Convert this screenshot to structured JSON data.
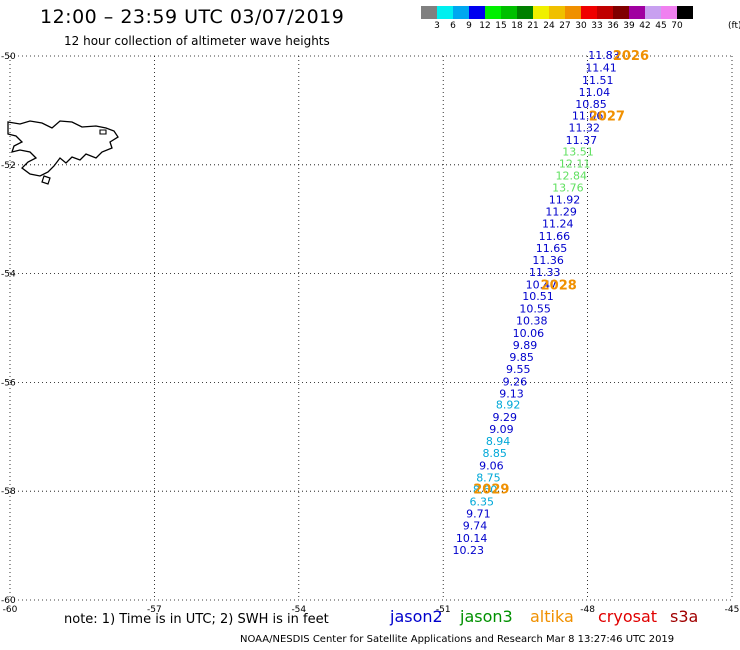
{
  "header": {
    "title": "12:00 – 23:59 UTC 03/07/2019",
    "subtitle": "12 hour collection of altimeter wave heights"
  },
  "colorbar": {
    "unit": "(ft)",
    "bins": [
      {
        "label": "3",
        "color": "#808080"
      },
      {
        "label": "6",
        "color": "#00f0f0"
      },
      {
        "label": "9",
        "color": "#00a8f0"
      },
      {
        "label": "12",
        "color": "#0000f0"
      },
      {
        "label": "15",
        "color": "#00f000"
      },
      {
        "label": "18",
        "color": "#00c000"
      },
      {
        "label": "21",
        "color": "#008000"
      },
      {
        "label": "24",
        "color": "#f0f000"
      },
      {
        "label": "27",
        "color": "#f0c000"
      },
      {
        "label": "30",
        "color": "#f09000"
      },
      {
        "label": "33",
        "color": "#f00000"
      },
      {
        "label": "36",
        "color": "#c00000"
      },
      {
        "label": "39",
        "color": "#800000"
      },
      {
        "label": "42",
        "color": "#a000a0"
      },
      {
        "label": "45",
        "color": "#c8a0f0"
      },
      {
        "label": "70",
        "color": "#f080f0"
      },
      {
        "label": "",
        "color": "#000000"
      }
    ]
  },
  "chart_data": {
    "type": "scatter",
    "xlim": [
      -60,
      -45
    ],
    "ylim": [
      -60,
      -50
    ],
    "x_ticks": [
      {
        "value": -60,
        "label": "-60"
      },
      {
        "value": -57,
        "label": "-57"
      },
      {
        "value": -54,
        "label": "-54"
      },
      {
        "value": -51,
        "label": "-51"
      },
      {
        "value": -48,
        "label": "-48"
      },
      {
        "value": -45,
        "label": "-45"
      }
    ],
    "y_ticks": [
      {
        "value": -50,
        "label": "-50"
      },
      {
        "value": -52,
        "label": "-52"
      },
      {
        "value": -54,
        "label": "-54"
      },
      {
        "value": -56,
        "label": "-56"
      },
      {
        "value": -58,
        "label": "-58"
      },
      {
        "value": -60,
        "label": "-60"
      }
    ],
    "grid": true,
    "colors": {
      "jason2": "#0000cc",
      "cyan_bin": "#00a8d8",
      "green_bin": "#60e060",
      "time_label": "#f09000"
    },
    "points": [
      {
        "lon": -47.66,
        "lat": -49.98,
        "swh": "11.83",
        "color": "#0000cc"
      },
      {
        "lon": -47.72,
        "lat": -50.21,
        "swh": "11.41",
        "color": "#0000cc"
      },
      {
        "lon": -47.79,
        "lat": -50.44,
        "swh": "11.51",
        "color": "#0000cc"
      },
      {
        "lon": -47.86,
        "lat": -50.66,
        "swh": "11.04",
        "color": "#0000cc"
      },
      {
        "lon": -47.93,
        "lat": -50.88,
        "swh": "10.85",
        "color": "#0000cc"
      },
      {
        "lon": -48.0,
        "lat": -51.09,
        "swh": "11.06",
        "color": "#0000cc"
      },
      {
        "lon": -48.07,
        "lat": -51.31,
        "swh": "11.32",
        "color": "#0000cc"
      },
      {
        "lon": -48.13,
        "lat": -51.54,
        "swh": "11.37",
        "color": "#0000cc"
      },
      {
        "lon": -48.2,
        "lat": -51.76,
        "swh": "13.51",
        "color": "#60e060"
      },
      {
        "lon": -48.27,
        "lat": -51.98,
        "swh": "12.11",
        "color": "#60e060"
      },
      {
        "lon": -48.34,
        "lat": -52.2,
        "swh": "12.84",
        "color": "#60e060"
      },
      {
        "lon": -48.41,
        "lat": -52.42,
        "swh": "13.76",
        "color": "#60e060"
      },
      {
        "lon": -48.48,
        "lat": -52.64,
        "swh": "11.92",
        "color": "#0000cc"
      },
      {
        "lon": -48.55,
        "lat": -52.86,
        "swh": "11.29",
        "color": "#0000cc"
      },
      {
        "lon": -48.62,
        "lat": -53.08,
        "swh": "11.24",
        "color": "#0000cc"
      },
      {
        "lon": -48.69,
        "lat": -53.31,
        "swh": "11.66",
        "color": "#0000cc"
      },
      {
        "lon": -48.75,
        "lat": -53.53,
        "swh": "11.65",
        "color": "#0000cc"
      },
      {
        "lon": -48.82,
        "lat": -53.75,
        "swh": "11.36",
        "color": "#0000cc"
      },
      {
        "lon": -48.89,
        "lat": -53.97,
        "swh": "11.33",
        "color": "#0000cc"
      },
      {
        "lon": -48.96,
        "lat": -54.2,
        "swh": "10.47",
        "color": "#0000cc"
      },
      {
        "lon": -49.03,
        "lat": -54.41,
        "swh": "10.51",
        "color": "#0000cc"
      },
      {
        "lon": -49.09,
        "lat": -54.64,
        "swh": "10.55",
        "color": "#0000cc"
      },
      {
        "lon": -49.16,
        "lat": -54.86,
        "swh": "10.38",
        "color": "#0000cc"
      },
      {
        "lon": -49.23,
        "lat": -55.09,
        "swh": "10.06",
        "color": "#0000cc"
      },
      {
        "lon": -49.3,
        "lat": -55.31,
        "swh": "9.89",
        "color": "#0000cc"
      },
      {
        "lon": -49.37,
        "lat": -55.53,
        "swh": "9.85",
        "color": "#0000cc"
      },
      {
        "lon": -49.44,
        "lat": -55.75,
        "swh": "9.55",
        "color": "#0000cc"
      },
      {
        "lon": -49.51,
        "lat": -55.98,
        "swh": "9.26",
        "color": "#0000cc"
      },
      {
        "lon": -49.58,
        "lat": -56.2,
        "swh": "9.13",
        "color": "#0000cc"
      },
      {
        "lon": -49.65,
        "lat": -56.41,
        "swh": "8.92",
        "color": "#00a8d8"
      },
      {
        "lon": -49.72,
        "lat": -56.64,
        "swh": "9.29",
        "color": "#0000cc"
      },
      {
        "lon": -49.79,
        "lat": -56.86,
        "swh": "9.09",
        "color": "#0000cc"
      },
      {
        "lon": -49.86,
        "lat": -57.08,
        "swh": "8.94",
        "color": "#00a8d8"
      },
      {
        "lon": -49.93,
        "lat": -57.3,
        "swh": "8.85",
        "color": "#00a8d8"
      },
      {
        "lon": -50.0,
        "lat": -57.53,
        "swh": "9.06",
        "color": "#0000cc"
      },
      {
        "lon": -50.06,
        "lat": -57.75,
        "swh": "8.75",
        "color": "#00a8d8"
      },
      {
        "lon": -50.13,
        "lat": -57.97,
        "swh": "8.60",
        "color": "#00a8d8"
      },
      {
        "lon": -50.2,
        "lat": -58.19,
        "swh": "6.35",
        "color": "#00a8d8"
      },
      {
        "lon": -50.27,
        "lat": -58.41,
        "swh": "9.71",
        "color": "#0000cc"
      },
      {
        "lon": -50.34,
        "lat": -58.63,
        "swh": "9.74",
        "color": "#0000cc"
      },
      {
        "lon": -50.41,
        "lat": -58.86,
        "swh": "10.14",
        "color": "#0000cc"
      },
      {
        "lon": -50.48,
        "lat": -59.08,
        "swh": "10.23",
        "color": "#0000cc"
      }
    ],
    "time_labels": [
      {
        "lon": -47.1,
        "lat": -49.98,
        "text": "2026"
      },
      {
        "lon": -47.6,
        "lat": -51.09,
        "text": "2027"
      },
      {
        "lon": -48.6,
        "lat": -54.2,
        "text": "2028"
      },
      {
        "lon": -50.0,
        "lat": -57.95,
        "text": "2029"
      }
    ]
  },
  "note": "note: 1) Time is in UTC; 2) SWH is in feet",
  "satellites": [
    {
      "name": "jason2",
      "color": "#0000cc"
    },
    {
      "name": "jason3",
      "color": "#009000"
    },
    {
      "name": "altika",
      "color": "#f09000"
    },
    {
      "name": "cryosat",
      "color": "#e00000"
    },
    {
      "name": "s3a",
      "color": "#a00000"
    }
  ],
  "footer": "NOAA/NESDIS Center for Satellite Applications and Research   Mar  8 13:27:46 UTC 2019"
}
